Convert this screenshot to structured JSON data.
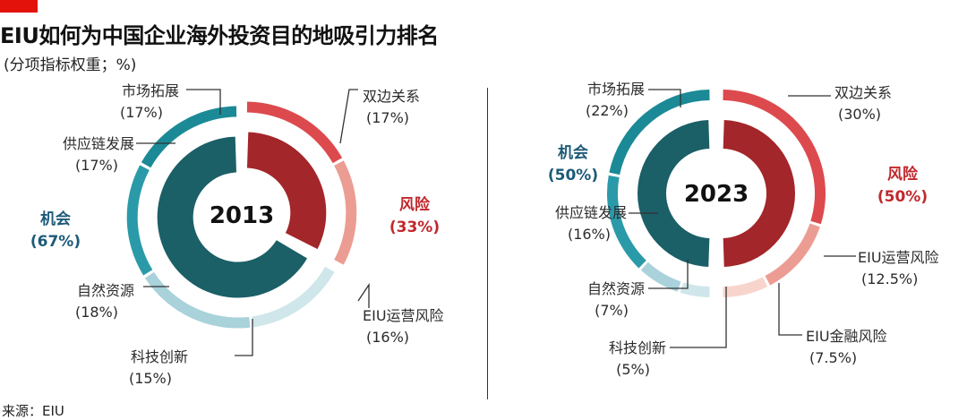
{
  "header": {
    "title": "EIU如何为中国企业海外投资目的地吸引力排名",
    "subtitle": "(分项指标权重；%)"
  },
  "source": "来源：EIU",
  "colors": {
    "accent": "#e3120b",
    "opportunity_inner": "#1b5f67",
    "risk_inner": "#a3262a"
  },
  "chart_data": [
    {
      "type": "pie",
      "year": "2013",
      "groups": [
        {
          "name": "机会",
          "value_label": "(67%)",
          "value": 67,
          "color": "#1b5f67"
        },
        {
          "name": "风险",
          "value_label": "(33%)",
          "value": 33,
          "color": "#a3262a"
        }
      ],
      "segments": [
        {
          "name": "双边关系",
          "value_label": "(17%)",
          "value": 17,
          "group": "风险",
          "color": "#dc4a4e"
        },
        {
          "name": "EIU运营风险",
          "value_label": "(16%)",
          "value": 16,
          "group": "风险",
          "color": "#ec9d93"
        },
        {
          "name": "科技创新",
          "value_label": "(15%)",
          "value": 15,
          "group": "机会",
          "color": "#cfe6ea"
        },
        {
          "name": "自然资源",
          "value_label": "(18%)",
          "value": 18,
          "group": "机会",
          "color": "#a9d2db"
        },
        {
          "name": "供应链发展",
          "value_label": "(17%)",
          "value": 17,
          "group": "机会",
          "color": "#2b9aa8"
        },
        {
          "name": "市场拓展",
          "value_label": "(17%)",
          "value": 17,
          "group": "机会",
          "color": "#1b8a96"
        }
      ]
    },
    {
      "type": "pie",
      "year": "2023",
      "groups": [
        {
          "name": "机会",
          "value_label": "(50%)",
          "value": 50,
          "color": "#1b5f67"
        },
        {
          "name": "风险",
          "value_label": "(50%)",
          "value": 50,
          "color": "#a3262a"
        }
      ],
      "segments": [
        {
          "name": "双边关系",
          "value_label": "(30%)",
          "value": 30,
          "group": "风险",
          "color": "#dc4a4e"
        },
        {
          "name": "EIU运营风险",
          "value_label": "(12.5%)",
          "value": 12.5,
          "group": "风险",
          "color": "#ec9d93"
        },
        {
          "name": "EIU金融风险",
          "value_label": "(7.5%)",
          "value": 7.5,
          "group": "风险",
          "color": "#f8d5cc"
        },
        {
          "name": "科技创新",
          "value_label": "(5%)",
          "value": 5,
          "group": "机会",
          "color": "#cfe6ea"
        },
        {
          "name": "自然资源",
          "value_label": "(7%)",
          "value": 7,
          "group": "机会",
          "color": "#a9d2db"
        },
        {
          "name": "供应链发展",
          "value_label": "(16%)",
          "value": 16,
          "group": "机会",
          "color": "#2b9aa8"
        },
        {
          "name": "市场拓展",
          "value_label": "(22%)",
          "value": 22,
          "group": "机会",
          "color": "#1b8a96"
        }
      ]
    }
  ]
}
